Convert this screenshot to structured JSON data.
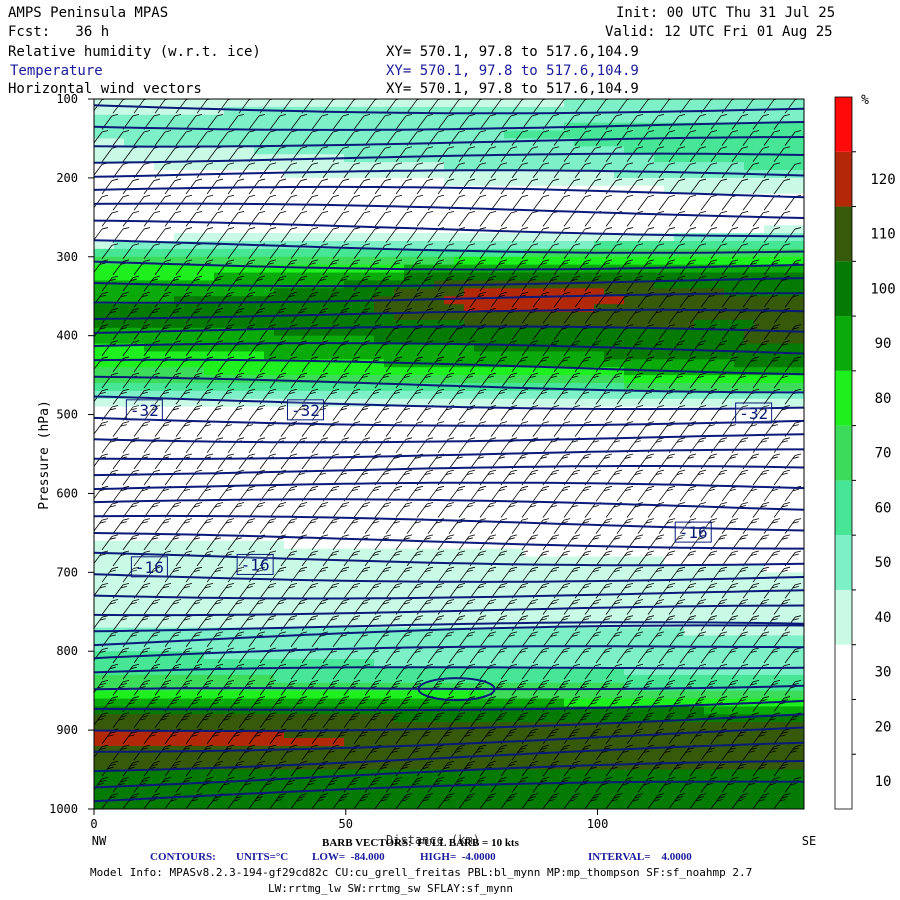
{
  "header": {
    "model": "AMPS Peninsula MPAS",
    "forecast": "Fcst:   36 h",
    "init": "Init: 00 UTC Thu 31 Jul 25",
    "valid": "Valid: 12 UTC Fri 01 Aug 25",
    "fields": [
      {
        "name": "Relative humidity (w.r.t. ice)",
        "xy": "XY= 570.1, 97.8 to 517.6,104.9"
      },
      {
        "name": "Temperature",
        "xy": "XY= 570.1, 97.8 to 517.6,104.9"
      },
      {
        "name": "Horizontal wind vectors",
        "xy": "XY= 570.1, 97.8 to 517.6,104.9"
      }
    ]
  },
  "chart_data": {
    "type": "heatmap",
    "title": "",
    "xlabel": "Distance (km)",
    "ylabel": "Pressure (hPa)",
    "xlim": [
      0,
      141
    ],
    "ylim": [
      1000,
      100
    ],
    "x_ticks": [
      0,
      50,
      100
    ],
    "y_ticks": [
      100,
      200,
      300,
      400,
      500,
      600,
      700,
      800,
      900,
      1000
    ],
    "x_end_labels": {
      "left": "NW",
      "right": "SE"
    },
    "colorbar": {
      "unit": "%",
      "levels": [
        0,
        10,
        20,
        30,
        40,
        50,
        60,
        70,
        80,
        90,
        100,
        110,
        120
      ],
      "labels": [
        "10",
        "20",
        "30",
        "40",
        "50",
        "60",
        "70",
        "80",
        "90",
        "100",
        "110",
        "120"
      ],
      "colors": [
        "#ffffff",
        "#ffffff",
        "#ffffff",
        "#c8fae6",
        "#7df0c8",
        "#46e696",
        "#3cdc5a",
        "#1ef01e",
        "#0aaa0a",
        "#057a05",
        "#375a0a",
        "#b4280a",
        "#ff0a0a"
      ]
    },
    "rh_profile": {
      "pressure": [
        100,
        140,
        180,
        220,
        260,
        290,
        320,
        350,
        380,
        410,
        440,
        470,
        500,
        540,
        600,
        660,
        700,
        740,
        780,
        820,
        850,
        880,
        910,
        950,
        1000
      ],
      "rh_west": [
        35,
        45,
        30,
        15,
        12,
        45,
        75,
        88,
        92,
        80,
        70,
        55,
        15,
        10,
        12,
        30,
        35,
        30,
        45,
        55,
        70,
        100,
        115,
        100,
        95
      ],
      "rh_east": [
        40,
        55,
        55,
        30,
        25,
        60,
        92,
        100,
        100,
        102,
        90,
        55,
        12,
        8,
        15,
        28,
        30,
        35,
        40,
        45,
        60,
        95,
        105,
        100,
        95
      ],
      "rh_max_center": {
        "x": 85,
        "pressure": 350,
        "rh": 122
      }
    },
    "temperature_contours": {
      "units": "°C",
      "low": -84.0,
      "high": -4.0,
      "interval": 4.0,
      "labels": [
        {
          "text": "-32",
          "x": 10,
          "pressure": 494
        },
        {
          "text": "-32",
          "x": 42,
          "pressure": 494
        },
        {
          "text": "-32",
          "x": 131,
          "pressure": 498
        },
        {
          "text": "-16",
          "x": 11,
          "pressure": 693
        },
        {
          "text": "-16",
          "x": 32,
          "pressure": 690
        },
        {
          "text": "-16",
          "x": 119,
          "pressure": 649
        }
      ]
    }
  },
  "footer": {
    "barb": "BARB VECTORS:  FULL BARB = 10 kts",
    "contours_label": "CONTOURS:",
    "units_label": "UNITS=°C",
    "low_label": "LOW=  -84.000",
    "high_label": "HIGH=  -4.0000",
    "interval_label": "INTERVAL=    4.0000",
    "model_info": "Model Info: MPASv8.2.3-194-gf29cd82c CU:cu_grell_freitas PBL:bl_mynn MP:mp_thompson SF:sf_noahmp 2.7",
    "model_info2": "LW:rrtmg_lw SW:rrtmg_sw SFLAY:sf_mynn"
  }
}
